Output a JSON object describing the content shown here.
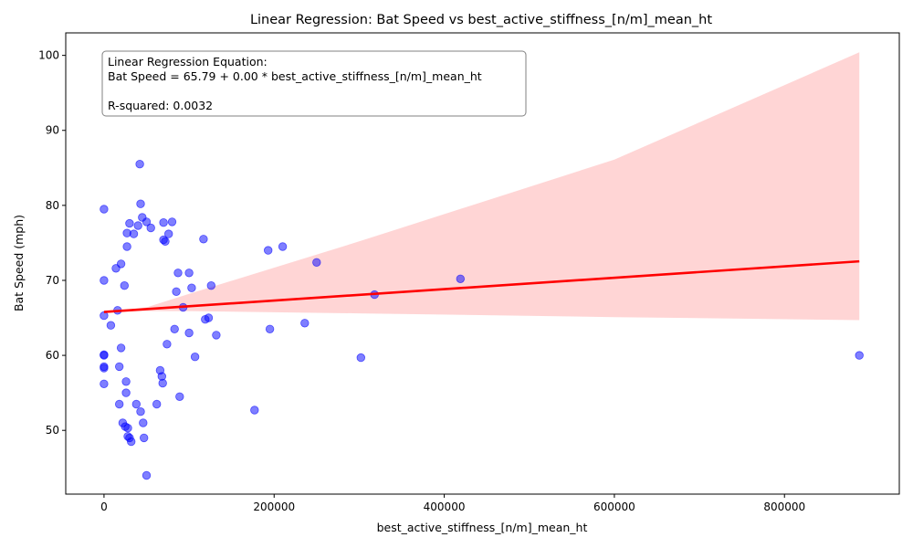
{
  "chart_data": {
    "type": "scatter",
    "title": "Linear Regression: Bat Speed vs best_active_stiffness_[n/m]_mean_ht",
    "xlabel": "best_active_stiffness_[n/m]_mean_ht",
    "ylabel": "Bat Speed (mph)",
    "xlim": [
      -45000,
      935000
    ],
    "ylim": [
      41.5,
      103
    ],
    "xticks": [
      0,
      200000,
      400000,
      600000,
      800000
    ],
    "yticks": [
      50,
      60,
      70,
      80,
      90,
      100
    ],
    "grid": false,
    "colors": {
      "points": "#0000ff",
      "regression_line": "#ff0000",
      "confidence_band": "#ffb3b3"
    },
    "annotation": {
      "line1": "Linear Regression Equation:",
      "line2": "Bat Speed = 65.79 + 0.00 * best_active_stiffness_[n/m]_mean_ht",
      "line3": "R-squared: 0.0032"
    },
    "regression": {
      "intercept": 65.79,
      "slope": 7.6e-06,
      "x_start": 0,
      "x_end": 888000
    },
    "confidence_band": {
      "upper": [
        [
          0,
          65.7
        ],
        [
          50000,
          66.4
        ],
        [
          100000,
          68.2
        ],
        [
          300000,
          75.2
        ],
        [
          600000,
          86.1
        ],
        [
          888000,
          100.4
        ]
      ],
      "lower": [
        [
          888000,
          64.7
        ],
        [
          600000,
          65.1
        ],
        [
          300000,
          65.6
        ],
        [
          100000,
          65.9
        ],
        [
          50000,
          65.9
        ],
        [
          0,
          65.8
        ]
      ]
    },
    "points": [
      [
        0,
        79.5
      ],
      [
        0,
        70.0
      ],
      [
        0,
        65.3
      ],
      [
        0,
        60.1
      ],
      [
        0,
        60.0
      ],
      [
        0,
        58.5
      ],
      [
        0,
        58.3
      ],
      [
        0,
        56.2
      ],
      [
        8000,
        64.0
      ],
      [
        14000,
        71.6
      ],
      [
        16000,
        66.0
      ],
      [
        18000,
        58.5
      ],
      [
        18000,
        53.5
      ],
      [
        20000,
        72.2
      ],
      [
        20000,
        61.0
      ],
      [
        22000,
        51.0
      ],
      [
        24000,
        69.3
      ],
      [
        25000,
        50.5
      ],
      [
        26000,
        55.0
      ],
      [
        26000,
        56.5
      ],
      [
        27000,
        76.3
      ],
      [
        27000,
        74.5
      ],
      [
        28000,
        50.3
      ],
      [
        28000,
        49.2
      ],
      [
        30000,
        77.6
      ],
      [
        30000,
        49.0
      ],
      [
        32000,
        48.5
      ],
      [
        35000,
        76.2
      ],
      [
        38000,
        53.5
      ],
      [
        40000,
        77.3
      ],
      [
        42000,
        85.5
      ],
      [
        43000,
        80.2
      ],
      [
        43000,
        52.5
      ],
      [
        45000,
        78.4
      ],
      [
        46000,
        51.0
      ],
      [
        47000,
        49.0
      ],
      [
        50000,
        77.8
      ],
      [
        50000,
        44.0
      ],
      [
        55000,
        77.0
      ],
      [
        62000,
        53.5
      ],
      [
        66000,
        58.0
      ],
      [
        68000,
        57.2
      ],
      [
        69000,
        56.3
      ],
      [
        70000,
        75.4
      ],
      [
        70000,
        77.7
      ],
      [
        72000,
        75.2
      ],
      [
        74000,
        61.5
      ],
      [
        76000,
        76.2
      ],
      [
        80000,
        77.8
      ],
      [
        83000,
        63.5
      ],
      [
        85000,
        68.5
      ],
      [
        87000,
        71.0
      ],
      [
        89000,
        54.5
      ],
      [
        93000,
        66.4
      ],
      [
        100000,
        71.0
      ],
      [
        100000,
        63.0
      ],
      [
        103000,
        69.0
      ],
      [
        107000,
        59.8
      ],
      [
        117000,
        75.5
      ],
      [
        119000,
        64.8
      ],
      [
        123000,
        65.0
      ],
      [
        126000,
        69.3
      ],
      [
        132000,
        62.7
      ],
      [
        177000,
        52.7
      ],
      [
        193000,
        74.0
      ],
      [
        195000,
        63.5
      ],
      [
        210000,
        74.5
      ],
      [
        236000,
        64.3
      ],
      [
        250000,
        72.4
      ],
      [
        302000,
        59.7
      ],
      [
        318000,
        68.1
      ],
      [
        419000,
        70.2
      ],
      [
        888000,
        60.0
      ]
    ]
  }
}
